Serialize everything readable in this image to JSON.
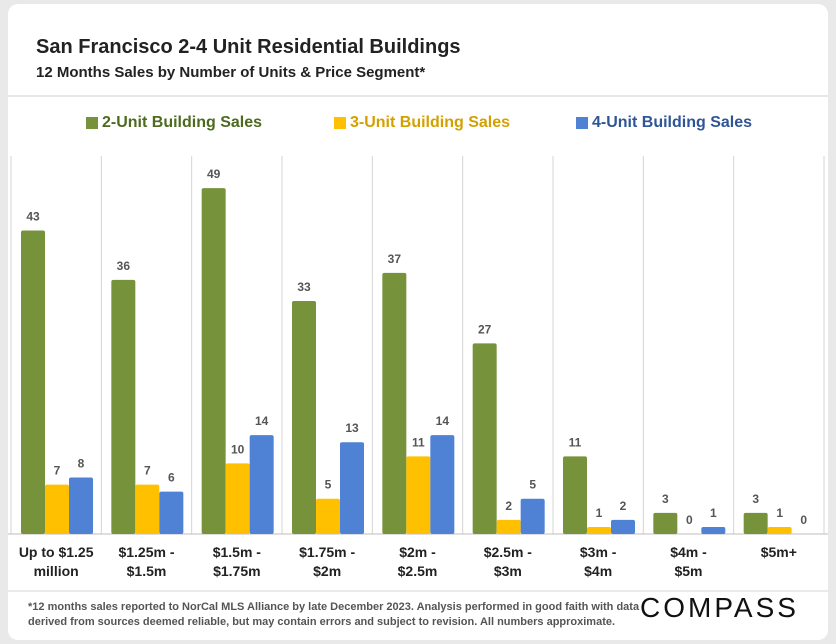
{
  "header": {
    "title": "San Francisco 2-4 Unit Residential Buildings",
    "subtitle": "12 Months Sales by Number of Units & Price Segment*"
  },
  "footnote": {
    "line1": "*12 months sales reported to NorCal MLS Alliance by late December 2023. Analysis performed in good faith with data",
    "line2": "derived from sources deemed reliable, but may contain errors and subject to revision. All numbers approximate."
  },
  "brand": {
    "logo_text": "COMPASS"
  },
  "chart_data": {
    "type": "bar",
    "title": "San Francisco 2-4 Unit Residential Buildings",
    "subtitle": "12 Months Sales by Number of Units & Price Segment*",
    "categories": [
      [
        "Up to $1.25",
        "million"
      ],
      [
        "$1.25m -",
        "$1.5m"
      ],
      [
        "$1.5m -",
        "$1.75m"
      ],
      [
        "$1.75m -",
        "$2m"
      ],
      [
        "$2m -",
        "$2.5m"
      ],
      [
        "$2.5m -",
        "$3m"
      ],
      [
        "$3m -",
        "$4m"
      ],
      [
        "$4m -",
        "$5m"
      ],
      [
        "$5m+",
        ""
      ]
    ],
    "series": [
      {
        "name": "2-Unit Building Sales",
        "color": "#76933c",
        "label_color": "#4d6a1f",
        "values": [
          43,
          36,
          49,
          33,
          37,
          27,
          11,
          3,
          3
        ]
      },
      {
        "name": "3-Unit Building Sales",
        "color": "#ffc000",
        "label_color": "#d4a000",
        "values": [
          7,
          7,
          10,
          5,
          11,
          2,
          1,
          0,
          1
        ]
      },
      {
        "name": "4-Unit Building Sales",
        "color": "#4f81d4",
        "label_color": "#2f5597",
        "values": [
          8,
          6,
          14,
          13,
          14,
          5,
          2,
          1,
          0
        ]
      }
    ],
    "ylim": [
      0,
      51
    ],
    "grid": false,
    "legend": "top"
  }
}
